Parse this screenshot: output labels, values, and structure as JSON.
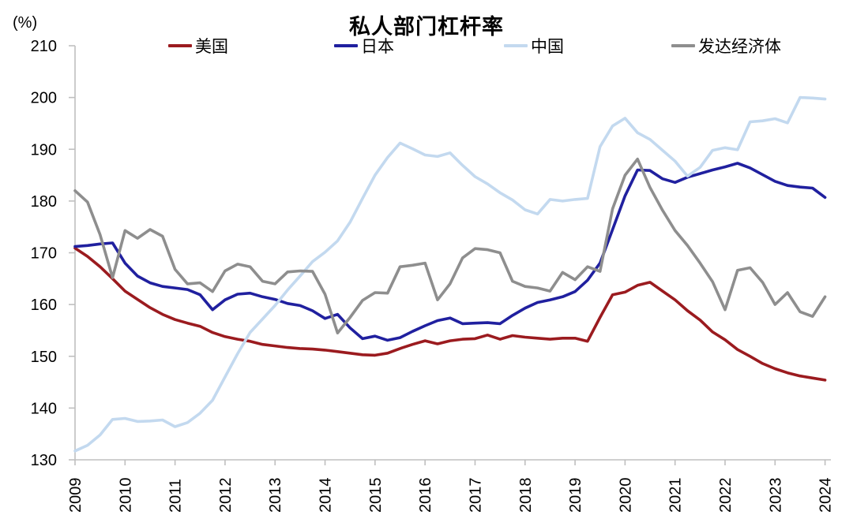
{
  "header": {
    "unit_label": "(%)"
  },
  "chart_data": {
    "type": "line",
    "title": "私人部门杠杆率",
    "ylabel": "%",
    "x_start_year": 2009,
    "x_step_years": 0.25,
    "points_per_series": 61,
    "x_tick_labels": [
      "2009",
      "2010",
      "2011",
      "2012",
      "2013",
      "2014",
      "2015",
      "2016",
      "2017",
      "2018",
      "2019",
      "2020",
      "2021",
      "2022",
      "2023",
      "2024"
    ],
    "y_ticks": [
      130,
      140,
      150,
      160,
      170,
      180,
      190,
      200,
      210
    ],
    "ylim": [
      130,
      210
    ],
    "grid": false,
    "legend_position": "top",
    "axis_color": "#BFBFBF",
    "text_color": "#000000",
    "series": [
      {
        "key": "us",
        "name": "美国",
        "color": "#9B1B1F",
        "values": [
          170.9,
          169.3,
          167.3,
          165.0,
          162.6,
          161.0,
          159.4,
          158.1,
          157.1,
          156.4,
          155.8,
          154.6,
          153.8,
          153.3,
          152.9,
          152.3,
          152.0,
          151.7,
          151.5,
          151.4,
          151.2,
          150.9,
          150.6,
          150.3,
          150.2,
          150.6,
          151.5,
          152.3,
          153.0,
          152.4,
          153.0,
          153.3,
          153.4,
          154.1,
          153.3,
          154.0,
          153.7,
          153.5,
          153.3,
          153.5,
          153.5,
          152.9,
          157.5,
          161.9,
          162.4,
          163.7,
          164.3,
          162.6,
          160.9,
          158.8,
          157.0,
          154.7,
          153.2,
          151.3,
          150.0,
          148.6,
          147.6,
          146.8,
          146.2,
          145.8,
          145.4
        ]
      },
      {
        "key": "japan",
        "name": "日本",
        "color": "#20209F",
        "values": [
          171.2,
          171.4,
          171.7,
          171.9,
          168.0,
          165.5,
          164.2,
          163.5,
          163.2,
          162.9,
          161.9,
          159.0,
          160.9,
          162.0,
          162.2,
          161.5,
          161.0,
          160.2,
          159.8,
          158.8,
          157.3,
          158.1,
          155.5,
          153.4,
          153.9,
          153.1,
          153.6,
          154.8,
          155.9,
          156.9,
          157.4,
          156.3,
          156.4,
          156.5,
          156.3,
          157.9,
          159.3,
          160.4,
          160.9,
          161.5,
          162.5,
          164.7,
          168.0,
          174.5,
          181.0,
          186.0,
          185.9,
          184.3,
          183.6,
          184.6,
          185.3,
          186.0,
          186.6,
          187.3,
          186.4,
          185.1,
          183.8,
          183.0,
          182.7,
          182.5,
          180.7
        ]
      },
      {
        "key": "china",
        "name": "中国",
        "color": "#C3D9EF",
        "values": [
          131.7,
          132.8,
          134.8,
          137.8,
          138.0,
          137.4,
          137.5,
          137.7,
          136.4,
          137.2,
          139.0,
          141.5,
          146.0,
          150.5,
          154.6,
          157.2,
          159.8,
          162.8,
          165.5,
          168.3,
          170.1,
          172.3,
          175.9,
          180.5,
          185.0,
          188.4,
          191.2,
          190.1,
          188.9,
          188.6,
          189.3,
          186.9,
          184.7,
          183.3,
          181.6,
          180.2,
          178.3,
          177.5,
          180.3,
          180.0,
          180.3,
          180.5,
          190.5,
          194.5,
          196.0,
          193.2,
          191.9,
          189.8,
          187.7,
          184.8,
          186.5,
          189.8,
          190.3,
          189.9,
          195.3,
          195.5,
          195.9,
          195.1,
          200.0,
          199.9,
          199.7
        ]
      },
      {
        "key": "developed",
        "name": "发达经济体",
        "color": "#8E8E8E",
        "values": [
          182.0,
          179.8,
          173.5,
          165.2,
          174.3,
          172.8,
          174.5,
          173.2,
          166.8,
          164.0,
          164.2,
          162.5,
          166.5,
          167.8,
          167.3,
          164.5,
          164.0,
          166.3,
          166.5,
          166.4,
          162.0,
          154.5,
          157.5,
          160.8,
          162.3,
          162.2,
          167.3,
          167.6,
          168.0,
          160.9,
          164.0,
          169.0,
          170.8,
          170.6,
          170.0,
          164.5,
          163.5,
          163.2,
          162.6,
          166.2,
          164.8,
          167.3,
          166.4,
          178.5,
          185.0,
          188.1,
          182.6,
          178.2,
          174.3,
          171.4,
          168.0,
          164.4,
          159.0,
          166.6,
          167.1,
          164.3,
          160.0,
          162.3,
          158.6,
          157.7,
          161.5
        ]
      }
    ]
  }
}
